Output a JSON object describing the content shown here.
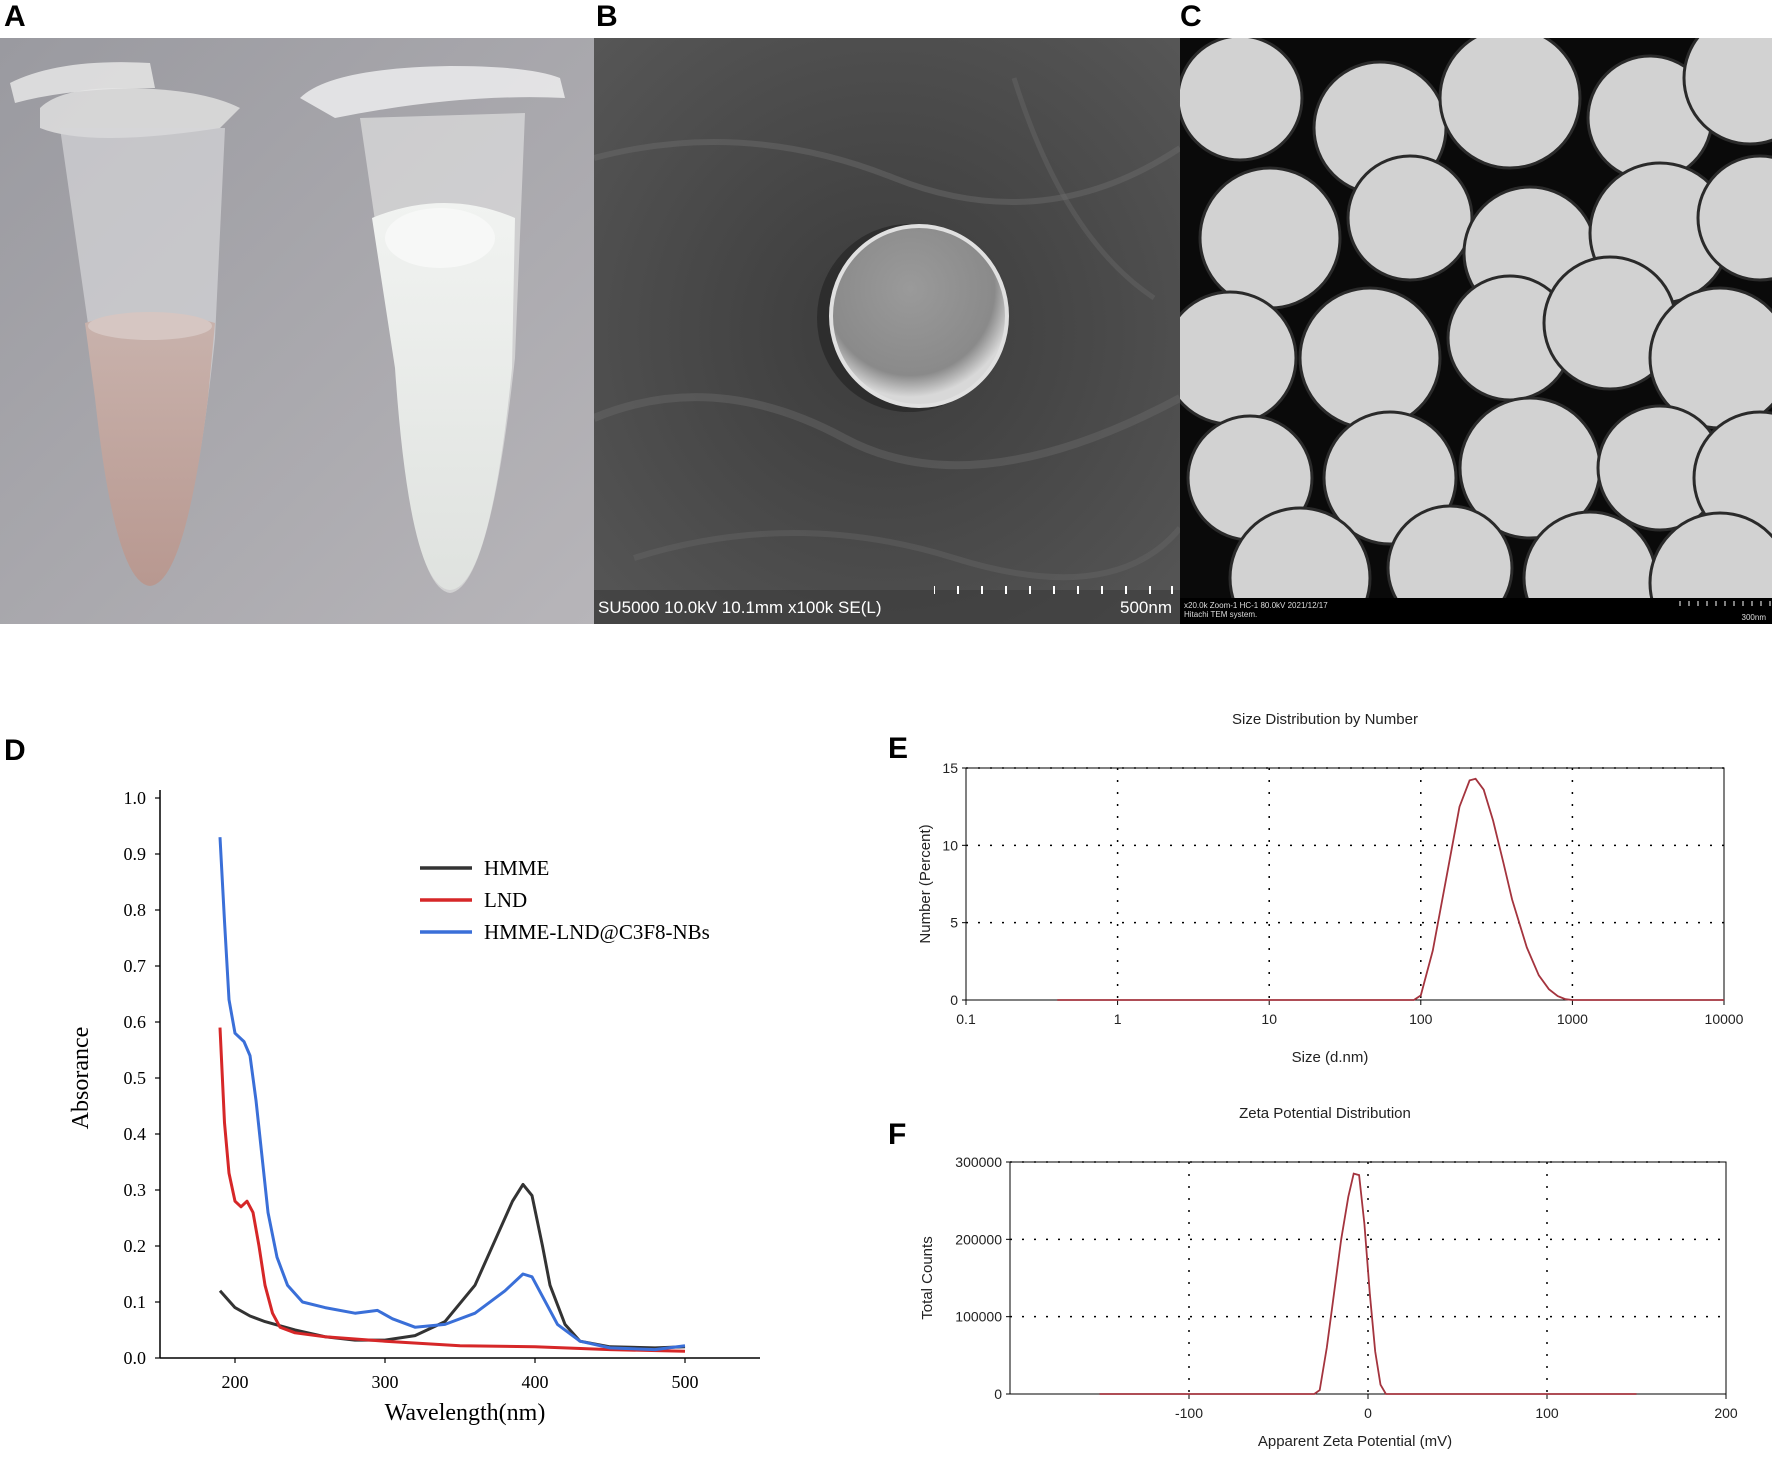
{
  "panels": {
    "a": {
      "letter": "A"
    },
    "b": {
      "letter": "B",
      "info": "SU5000 10.0kV 10.1mm x100k SE(L)",
      "scale": "500nm"
    },
    "c": {
      "letter": "C",
      "info_line1": "x20.0k Zoom-1 HC-1 80.0kV 2021/12/17",
      "info_line2": "Hitachi TEM system.",
      "scale": "300nm"
    },
    "d": {
      "letter": "D"
    },
    "e": {
      "letter": "E"
    },
    "f": {
      "letter": "F"
    }
  },
  "chart_data": [
    {
      "id": "D",
      "type": "line",
      "title": "",
      "xlabel": "Wavelength(nm)",
      "ylabel": "Absorance",
      "xlim": [
        150,
        550
      ],
      "ylim": [
        0,
        1.0
      ],
      "xticks": [
        200,
        300,
        400,
        500
      ],
      "yticks": [
        "0.0",
        "0.1",
        "0.2",
        "0.3",
        "0.4",
        "0.5",
        "0.6",
        "0.7",
        "0.8",
        "0.9",
        "1.0"
      ],
      "grid": false,
      "legend": "center-right",
      "series": [
        {
          "name": "HMME",
          "color": "#333333",
          "x": [
            190,
            200,
            210,
            220,
            240,
            260,
            280,
            300,
            320,
            340,
            360,
            375,
            385,
            392,
            398,
            405,
            410,
            420,
            430,
            450,
            480,
            500
          ],
          "y": [
            0.12,
            0.09,
            0.075,
            0.065,
            0.05,
            0.038,
            0.032,
            0.032,
            0.04,
            0.065,
            0.13,
            0.22,
            0.28,
            0.31,
            0.29,
            0.2,
            0.13,
            0.06,
            0.03,
            0.02,
            0.018,
            0.02
          ]
        },
        {
          "name": "LND",
          "color": "#d62728",
          "x": [
            190,
            193,
            196,
            200,
            204,
            208,
            212,
            216,
            220,
            225,
            230,
            240,
            260,
            300,
            350,
            400,
            450,
            500
          ],
          "y": [
            0.59,
            0.42,
            0.33,
            0.28,
            0.27,
            0.28,
            0.26,
            0.2,
            0.13,
            0.08,
            0.055,
            0.045,
            0.038,
            0.03,
            0.022,
            0.02,
            0.015,
            0.012
          ]
        },
        {
          "name": "HMME-LND@C3F8-NBs",
          "color": "#3a6fd8",
          "x": [
            190,
            193,
            196,
            200,
            206,
            210,
            214,
            218,
            222,
            228,
            235,
            245,
            260,
            280,
            295,
            305,
            320,
            340,
            360,
            380,
            392,
            398,
            405,
            415,
            430,
            450,
            480,
            500
          ],
          "y": [
            0.93,
            0.78,
            0.64,
            0.58,
            0.565,
            0.54,
            0.46,
            0.36,
            0.26,
            0.18,
            0.13,
            0.1,
            0.09,
            0.08,
            0.085,
            0.07,
            0.055,
            0.06,
            0.08,
            0.12,
            0.15,
            0.145,
            0.11,
            0.06,
            0.03,
            0.018,
            0.015,
            0.022
          ]
        }
      ]
    },
    {
      "id": "E",
      "type": "line",
      "title": "Size Distribution by Number",
      "xlabel": "Size (d.nm)",
      "ylabel": "Number (Percent)",
      "xscale": "log",
      "xlim": [
        0.1,
        10000
      ],
      "ylim": [
        0,
        15
      ],
      "xticks": [
        0.1,
        1,
        10,
        100,
        1000,
        10000
      ],
      "xticklabels": [
        "0.1",
        "1",
        "10",
        "100",
        "1000",
        "10000"
      ],
      "yticks": [
        0,
        5,
        10,
        15
      ],
      "grid": true,
      "series": [
        {
          "color": "#a4343e",
          "x": [
            0.4,
            90,
            100,
            120,
            150,
            180,
            210,
            230,
            260,
            300,
            350,
            400,
            500,
            600,
            700,
            800,
            900,
            1000,
            10000
          ],
          "y": [
            0,
            0,
            0.3,
            3.2,
            8.3,
            12.5,
            14.2,
            14.3,
            13.6,
            11.6,
            8.9,
            6.5,
            3.4,
            1.6,
            0.7,
            0.25,
            0.05,
            0,
            0
          ]
        }
      ]
    },
    {
      "id": "F",
      "type": "line",
      "title": "Zeta Potential Distribution",
      "xlabel": "Apparent Zeta Potential (mV)",
      "ylabel": "Total Counts",
      "xlim": [
        -200,
        200
      ],
      "ylim": [
        0,
        300000
      ],
      "xticks": [
        -100,
        0,
        100,
        200
      ],
      "yticks": [
        0,
        100000,
        200000,
        300000
      ],
      "grid": true,
      "series": [
        {
          "color": "#a4343e",
          "x": [
            -150,
            -30,
            -27,
            -23,
            -19,
            -15,
            -11,
            -8,
            -5,
            -2,
            1,
            4,
            7,
            10,
            150
          ],
          "y": [
            0,
            0,
            5000,
            60000,
            130000,
            200000,
            255000,
            285000,
            283000,
            220000,
            130000,
            55000,
            12000,
            0,
            0
          ]
        }
      ]
    }
  ]
}
